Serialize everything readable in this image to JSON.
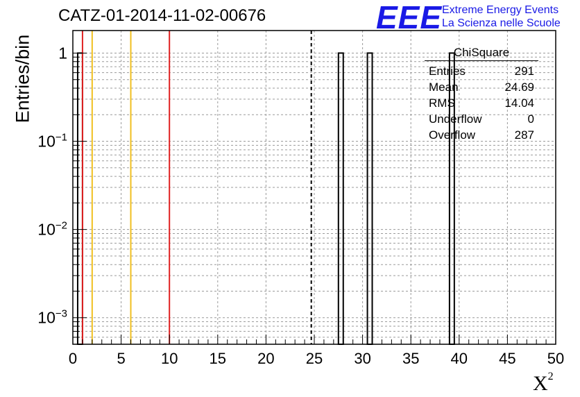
{
  "title": "CATZ-01-2014-11-02-00676",
  "logo": {
    "mark": "EEE",
    "line1": "Extreme Energy Events",
    "line2": "La Scienza nelle Scuole",
    "color": "#1a1ae6"
  },
  "axes": {
    "ylabel": "Entries/bin",
    "xlabel_base": "X",
    "xlabel_sup": "2"
  },
  "stats_box": {
    "title": "ChiSquare",
    "rows": [
      {
        "label": "Entries",
        "value": "291"
      },
      {
        "label": "Mean",
        "value": "24.69"
      },
      {
        "label": "RMS",
        "value": "14.04"
      },
      {
        "label": "Underflow",
        "value": "0"
      },
      {
        "label": "Overflow",
        "value": "287"
      }
    ]
  },
  "chart_data": {
    "type": "bar",
    "title": "CATZ-01-2014-11-02-00676",
    "xlabel": "X^2",
    "ylabel": "Entries/bin",
    "xlim": [
      0,
      50
    ],
    "ylim": [
      0.0005,
      1.8
    ],
    "yscale": "log",
    "grid": true,
    "x_ticks": [
      0,
      5,
      10,
      15,
      20,
      25,
      30,
      35,
      40,
      45,
      50
    ],
    "y_tick_labels": [
      {
        "value": 1,
        "text": "1"
      },
      {
        "value": 0.1,
        "text": "10^-1"
      },
      {
        "value": 0.01,
        "text": "10^-2"
      },
      {
        "value": 0.001,
        "text": "10^-3"
      }
    ],
    "bins": [
      {
        "x0": 0.5,
        "x1": 1.0,
        "count": 1
      },
      {
        "x0": 27.5,
        "x1": 28.0,
        "count": 1
      },
      {
        "x0": 30.5,
        "x1": 31.0,
        "count": 1
      },
      {
        "x0": 39.0,
        "x1": 39.5,
        "count": 1
      }
    ],
    "vertical_lines": [
      {
        "x": 1.0,
        "color": "#e02020",
        "style": "solid"
      },
      {
        "x": 2.0,
        "color": "#f0c020",
        "style": "solid"
      },
      {
        "x": 6.0,
        "color": "#f0c020",
        "style": "solid"
      },
      {
        "x": 10.0,
        "color": "#e02020",
        "style": "solid"
      },
      {
        "x": 24.69,
        "color": "#000000",
        "style": "dashed"
      }
    ]
  }
}
